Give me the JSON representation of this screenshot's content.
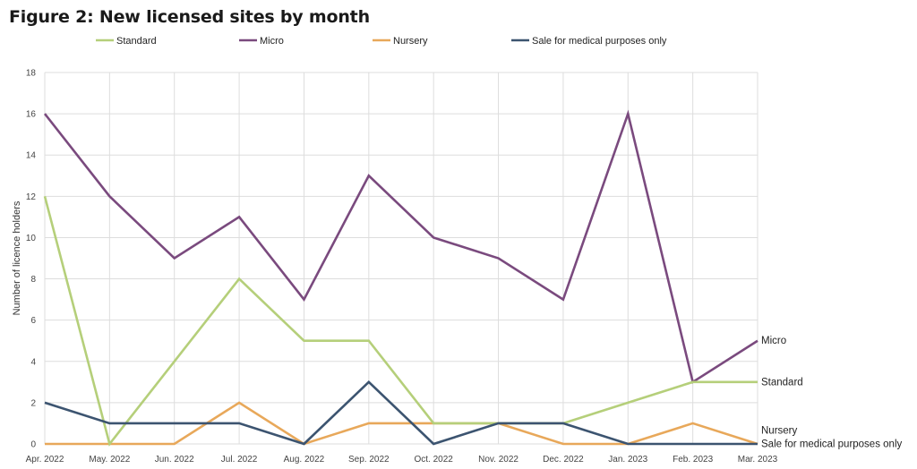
{
  "chart_data": {
    "type": "line",
    "title": "Figure 2: New licensed sites by month",
    "ylabel": "Number of licence holders",
    "xlabel": "",
    "categories": [
      "Apr. 2022",
      "May. 2022",
      "Jun. 2022",
      "Jul. 2022",
      "Aug. 2022",
      "Sep. 2022",
      "Oct. 2022",
      "Nov. 2022",
      "Dec. 2022",
      "Jan. 2023",
      "Feb. 2023",
      "Mar. 2023"
    ],
    "ylim": [
      0,
      18
    ],
    "yticks": [
      0,
      2,
      4,
      6,
      8,
      10,
      12,
      14,
      16,
      18
    ],
    "grid": true,
    "legend_position": "top",
    "series": [
      {
        "name": "Standard",
        "color": "#b5cf7a",
        "end_label": "Standard",
        "values": [
          12,
          0,
          4,
          8,
          5,
          5,
          1,
          1,
          1,
          2,
          3,
          3
        ]
      },
      {
        "name": "Micro",
        "color": "#7a4a7e",
        "end_label": "Micro",
        "values": [
          16,
          12,
          9,
          11,
          7,
          13,
          10,
          9,
          7,
          16,
          3,
          5
        ]
      },
      {
        "name": "Nursery",
        "color": "#e8a85a",
        "end_label": "Nursery",
        "values": [
          0,
          0,
          0,
          2,
          0,
          1,
          1,
          1,
          0,
          0,
          1,
          0
        ]
      },
      {
        "name": "Sale for medical purposes only",
        "color": "#3c5470",
        "end_label": "Sale for medical purposes only",
        "values": [
          2,
          1,
          1,
          1,
          0,
          3,
          0,
          1,
          1,
          0,
          0,
          0
        ]
      }
    ]
  }
}
